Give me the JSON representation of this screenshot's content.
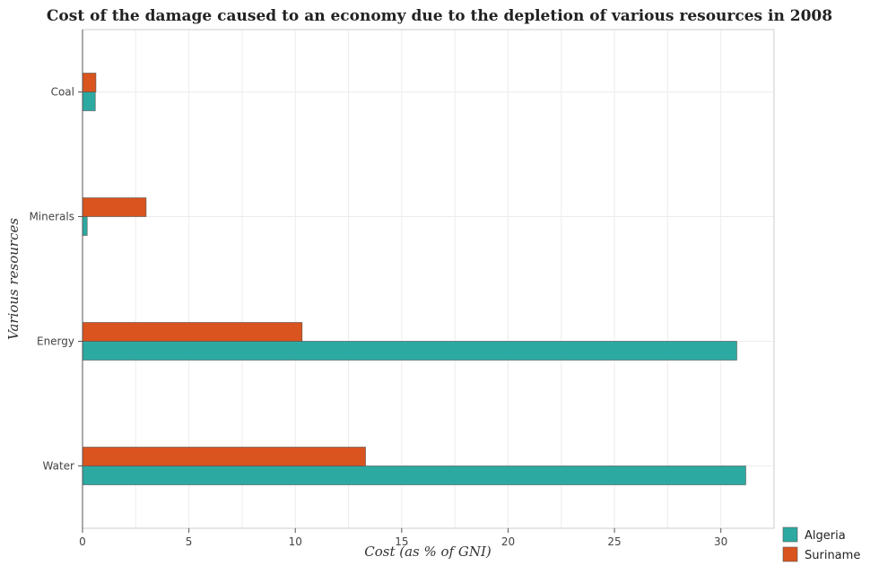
{
  "chart_data": {
    "type": "bar",
    "orientation": "horizontal",
    "title": "Cost of the damage caused to an economy due to the depletion of various resources in 2008",
    "xlabel": "Cost (as % of GNI)",
    "ylabel": "Various resources",
    "categories": [
      "Coal",
      "Minerals",
      "Energy",
      "Water"
    ],
    "series": [
      {
        "name": "Algeria",
        "color": "#2ca9a1",
        "values": [
          0.6,
          0.22,
          30.75,
          31.17
        ]
      },
      {
        "name": "Suriname",
        "color": "#d9541e",
        "values": [
          0.63,
          2.99,
          10.32,
          13.3
        ]
      }
    ],
    "xlim": [
      0,
      32.5
    ],
    "xticks": [
      0,
      5,
      10,
      15,
      20,
      25,
      30
    ],
    "grid": true,
    "legend_position": "bottom-right"
  }
}
